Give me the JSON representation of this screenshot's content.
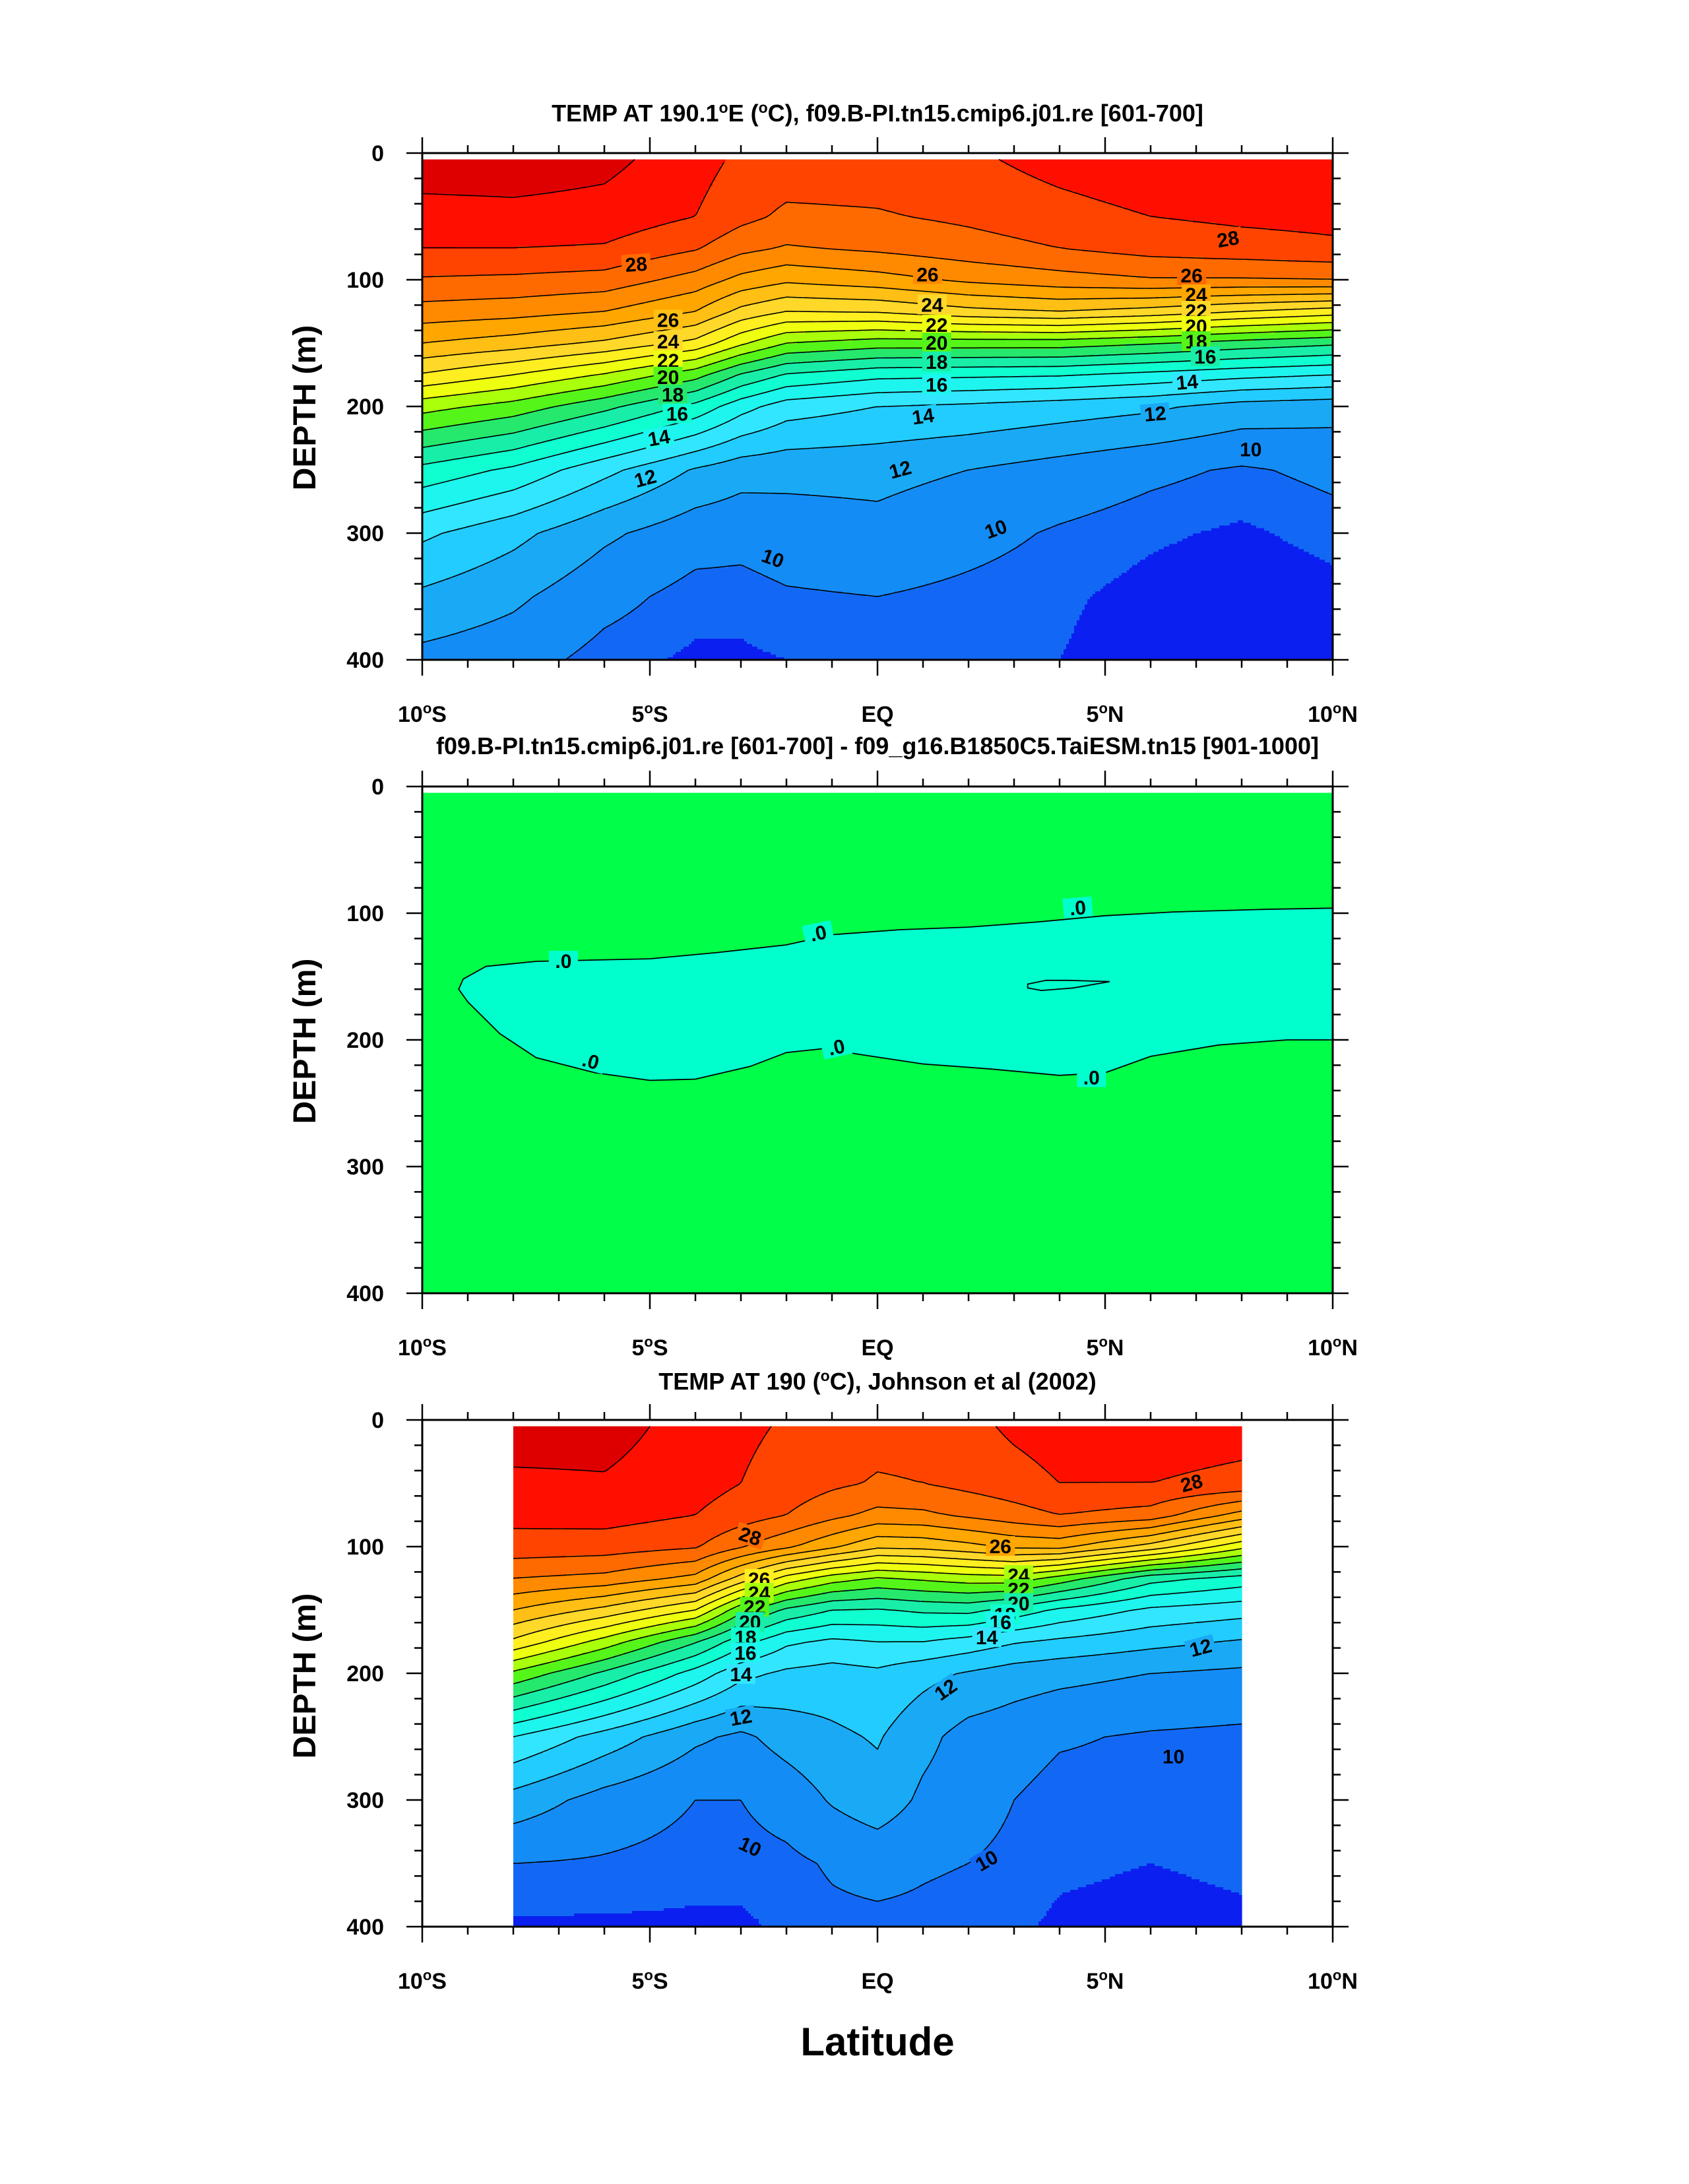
{
  "figure": {
    "xlabel": "Latitude",
    "palette": {
      "ocean_levels": [
        {
          "min": 29,
          "color": "#de0000"
        },
        {
          "min": 28,
          "color": "#ff0f00"
        },
        {
          "min": 27,
          "color": "#ff4400"
        },
        {
          "min": 26,
          "color": "#ff6a00"
        },
        {
          "min": 25,
          "color": "#ff8a00"
        },
        {
          "min": 24,
          "color": "#ffa600"
        },
        {
          "min": 23,
          "color": "#ffbf15"
        },
        {
          "min": 22,
          "color": "#ffd82a"
        },
        {
          "min": 21,
          "color": "#ffee20"
        },
        {
          "min": 20,
          "color": "#eeff10"
        },
        {
          "min": 19,
          "color": "#aaff0a"
        },
        {
          "min": 18,
          "color": "#55f51a"
        },
        {
          "min": 17,
          "color": "#25e86c"
        },
        {
          "min": 16,
          "color": "#18eea8"
        },
        {
          "min": 15,
          "color": "#10ffd0"
        },
        {
          "min": 14,
          "color": "#1df5ee"
        },
        {
          "min": 13,
          "color": "#33e6ff"
        },
        {
          "min": 12,
          "color": "#22ccff"
        },
        {
          "min": 11,
          "color": "#1aaaf5"
        },
        {
          "min": 10,
          "color": "#148cf5"
        },
        {
          "min": 9.5,
          "color": "#1268f5"
        },
        {
          "min": -1000,
          "color": "#0a1ff0"
        }
      ],
      "diff_background": "#00ff48",
      "diff_negative": "#00ffcc"
    }
  },
  "chart_data": [
    {
      "type": "contour",
      "title": "TEMP AT 190.1°E (°C), f09.B-PI.tn15.cmip6.j01.re [601-700]",
      "title_parts": {
        "a": "TEMP AT 190.1",
        "sup1": "o",
        "b": "E (",
        "sup2": "o",
        "c": "C), f09.B-PI.tn15.cmip6.j01.re [601-700]"
      },
      "ylabel": "DEPTH (m)",
      "xlim": [
        -10,
        10
      ],
      "ylim": [
        400,
        0
      ],
      "data_xlim": [
        -10,
        10
      ],
      "contour_interval": 1,
      "x": [
        -10,
        -8,
        -6,
        -4,
        -3,
        -2,
        0,
        2,
        4,
        6,
        8,
        10
      ],
      "depth": [
        5,
        50,
        75,
        100,
        125,
        150,
        175,
        200,
        250,
        300,
        350,
        400
      ],
      "values": [
        [
          29.6,
          29.6,
          29.3,
          28.4,
          27.8,
          27.6,
          27.6,
          27.8,
          28.4,
          28.8,
          28.9,
          28.9
        ],
        [
          28.6,
          28.7,
          28.6,
          28.0,
          27.3,
          26.8,
          26.9,
          27.2,
          27.6,
          28.0,
          28.2,
          28.3
        ],
        [
          28.0,
          28.0,
          27.9,
          27.1,
          26.3,
          25.9,
          26.2,
          26.6,
          27.0,
          27.4,
          27.6,
          27.8
        ],
        [
          26.9,
          26.8,
          26.6,
          25.6,
          24.7,
          24.2,
          24.6,
          25.2,
          25.6,
          25.9,
          25.9,
          26.0
        ],
        [
          25.6,
          25.4,
          25.0,
          24.0,
          22.7,
          22.0,
          22.1,
          22.7,
          23.0,
          22.6,
          22.0,
          21.5
        ],
        [
          24.0,
          23.5,
          22.8,
          21.7,
          20.2,
          19.0,
          18.5,
          18.5,
          18.5,
          18.1,
          17.6,
          17.2
        ],
        [
          21.9,
          21.0,
          19.9,
          18.4,
          16.9,
          15.9,
          15.3,
          15.2,
          15.1,
          14.7,
          14.3,
          14.0
        ],
        [
          19.4,
          18.6,
          17.3,
          15.7,
          14.4,
          13.5,
          13.0,
          12.8,
          12.5,
          12.2,
          11.6,
          11.4
        ],
        [
          15.7,
          14.8,
          13.3,
          11.9,
          11.4,
          11.3,
          11.3,
          11.0,
          10.6,
          10.2,
          9.9,
          10.2
        ],
        [
          13.2,
          12.3,
          11.2,
          10.4,
          10.3,
          10.5,
          10.7,
          10.3,
          9.9,
          9.6,
          9.4,
          9.7
        ],
        [
          11.8,
          11.2,
          10.3,
          9.7,
          9.7,
          9.9,
          10.0,
          9.8,
          9.6,
          9.3,
          9.1,
          9.3
        ],
        [
          10.7,
          10.4,
          9.7,
          9.4,
          9.4,
          9.5,
          9.6,
          9.6,
          9.5,
          9.2,
          9.0,
          9.1
        ]
      ],
      "contour_labels": [
        {
          "text": "28",
          "x": -5.3,
          "depth": 88,
          "angle": -4
        },
        {
          "text": "26",
          "x": 1.1,
          "depth": 96,
          "angle": 0
        },
        {
          "text": "28",
          "x": 7.7,
          "depth": 68,
          "angle": -10
        },
        {
          "text": "26",
          "x": -4.6,
          "depth": 132,
          "angle": 0
        },
        {
          "text": "24",
          "x": -4.6,
          "depth": 149,
          "angle": 0
        },
        {
          "text": "22",
          "x": -4.6,
          "depth": 164,
          "angle": 0
        },
        {
          "text": "20",
          "x": -4.6,
          "depth": 177,
          "angle": 0
        },
        {
          "text": "18",
          "x": -4.5,
          "depth": 191,
          "angle": 0
        },
        {
          "text": "16",
          "x": -4.4,
          "depth": 206,
          "angle": 0
        },
        {
          "text": "14",
          "x": -4.8,
          "depth": 225,
          "angle": -10
        },
        {
          "text": "12",
          "x": -5.1,
          "depth": 257,
          "angle": -15
        },
        {
          "text": "24",
          "x": 1.2,
          "depth": 120,
          "angle": 0
        },
        {
          "text": "22",
          "x": 1.3,
          "depth": 136,
          "angle": 0
        },
        {
          "text": "20",
          "x": 1.3,
          "depth": 150,
          "angle": 0
        },
        {
          "text": "18",
          "x": 1.3,
          "depth": 165,
          "angle": 0
        },
        {
          "text": "16",
          "x": 1.3,
          "depth": 183,
          "angle": 0
        },
        {
          "text": "14",
          "x": 1.0,
          "depth": 208,
          "angle": -8
        },
        {
          "text": "12",
          "x": 0.5,
          "depth": 250,
          "angle": -15
        },
        {
          "text": "10",
          "x": -2.3,
          "depth": 320,
          "angle": 20
        },
        {
          "text": "10",
          "x": 2.6,
          "depth": 297,
          "angle": -20
        },
        {
          "text": "26",
          "x": 6.9,
          "depth": 97,
          "angle": 0
        },
        {
          "text": "24",
          "x": 7.0,
          "depth": 112,
          "angle": 0
        },
        {
          "text": "22",
          "x": 7.0,
          "depth": 125,
          "angle": 0
        },
        {
          "text": "20",
          "x": 7.0,
          "depth": 137,
          "angle": 0
        },
        {
          "text": "18",
          "x": 7.0,
          "depth": 149,
          "angle": 0
        },
        {
          "text": "16",
          "x": 7.2,
          "depth": 161,
          "angle": 0
        },
        {
          "text": "14",
          "x": 6.8,
          "depth": 181,
          "angle": -5
        },
        {
          "text": "12",
          "x": 6.1,
          "depth": 206,
          "angle": -5
        },
        {
          "text": "10",
          "x": 8.2,
          "depth": 234,
          "angle": 0
        }
      ]
    },
    {
      "type": "contour",
      "title": "f09.B-PI.tn15.cmip6.j01.re [601-700] - f09_g16.B1850C5.TaiESM.tn15 [901-1000]",
      "ylabel": "DEPTH (m)",
      "xlim": [
        -10,
        10
      ],
      "ylim": [
        400,
        0
      ],
      "zero_contour_outer": [
        [
          -9.1,
          152
        ],
        [
          -8.6,
          142
        ],
        [
          -7.5,
          138
        ],
        [
          -5.0,
          136
        ],
        [
          -3.5,
          131
        ],
        [
          -2.0,
          125
        ],
        [
          -1.0,
          117
        ],
        [
          0.5,
          113
        ],
        [
          2.0,
          111
        ],
        [
          3.5,
          107
        ],
        [
          5.0,
          102
        ],
        [
          6.5,
          99
        ],
        [
          8.5,
          97
        ],
        [
          10.0,
          96
        ],
        [
          10.0,
          200
        ],
        [
          9.0,
          200
        ],
        [
          7.5,
          204
        ],
        [
          6.0,
          213
        ],
        [
          5.0,
          226
        ],
        [
          4.0,
          228
        ],
        [
          2.5,
          223
        ],
        [
          1.0,
          219
        ],
        [
          -0.3,
          212
        ],
        [
          -1.2,
          207
        ],
        [
          -2.0,
          210
        ],
        [
          -2.8,
          221
        ],
        [
          -4.0,
          231
        ],
        [
          -5.0,
          232
        ],
        [
          -6.2,
          226
        ],
        [
          -7.5,
          214
        ],
        [
          -8.3,
          195
        ],
        [
          -9.0,
          170
        ],
        [
          -9.2,
          160
        ]
      ],
      "zero_contour_inner": [
        [
          3.3,
          156
        ],
        [
          3.7,
          153
        ],
        [
          4.2,
          153
        ],
        [
          5.1,
          154
        ],
        [
          4.3,
          159
        ],
        [
          3.6,
          161
        ],
        [
          3.3,
          159
        ]
      ],
      "contour_labels": [
        {
          "text": ".0",
          "x": -6.9,
          "depth": 138,
          "angle": 0
        },
        {
          "text": ".0",
          "x": -1.3,
          "depth": 116,
          "angle": -12
        },
        {
          "text": ".0",
          "x": 4.4,
          "depth": 96,
          "angle": -5
        },
        {
          "text": ".0",
          "x": -6.3,
          "depth": 217,
          "angle": 15
        },
        {
          "text": ".0",
          "x": -0.9,
          "depth": 206,
          "angle": -12
        },
        {
          "text": ".0",
          "x": 4.7,
          "depth": 230,
          "angle": 0
        }
      ]
    },
    {
      "type": "contour",
      "title": "TEMP AT 190 (°C), Johnson et al (2002)",
      "title_parts": {
        "a": "TEMP AT 190 (",
        "sup1": "o",
        "b": "C), Johnson et al (2002)"
      },
      "ylabel": "DEPTH (m)",
      "xlim": [
        -10,
        10
      ],
      "ylim": [
        400,
        0
      ],
      "data_xlim": [
        -8,
        8
      ],
      "contour_interval": 1,
      "x": [
        -8,
        -6,
        -4,
        -3,
        -2,
        -1,
        0,
        1,
        2,
        3,
        4,
        6,
        8
      ],
      "depth": [
        5,
        50,
        75,
        100,
        125,
        150,
        175,
        200,
        250,
        300,
        350,
        400
      ],
      "values": [
        [
          29.5,
          29.4,
          28.6,
          28.2,
          27.9,
          27.6,
          27.4,
          27.4,
          27.7,
          28.2,
          28.5,
          28.4,
          28.3
        ],
        [
          28.8,
          28.9,
          28.4,
          28.0,
          27.6,
          27.2,
          26.9,
          27.0,
          27.3,
          27.6,
          28.0,
          28.0,
          27.8
        ],
        [
          28.3,
          28.4,
          28.0,
          27.5,
          27.0,
          26.3,
          25.7,
          25.8,
          26.2,
          26.6,
          27.0,
          26.6,
          24.6
        ],
        [
          27.6,
          27.5,
          27.1,
          26.1,
          25.2,
          24.2,
          23.2,
          23.3,
          23.7,
          24.2,
          24.3,
          22.6,
          20.3
        ],
        [
          26.0,
          25.7,
          24.7,
          22.6,
          20.6,
          19.5,
          18.9,
          19.2,
          19.5,
          19.6,
          18.6,
          16.4,
          15.6
        ],
        [
          24.0,
          22.7,
          21.0,
          18.3,
          16.8,
          16.0,
          15.9,
          16.2,
          16.3,
          15.6,
          14.8,
          13.8,
          13.4
        ],
        [
          21.8,
          19.6,
          17.1,
          15.4,
          14.2,
          13.8,
          14.0,
          14.0,
          13.6,
          13.1,
          12.8,
          12.3,
          11.9
        ],
        [
          18.8,
          16.8,
          14.6,
          13.3,
          12.8,
          12.6,
          12.8,
          12.3,
          11.9,
          11.5,
          11.3,
          11.0,
          10.8
        ],
        [
          14.0,
          12.6,
          11.2,
          10.8,
          11.4,
          11.8,
          12.1,
          11.3,
          10.6,
          10.4,
          10.1,
          9.9,
          9.8
        ],
        [
          11.6,
          10.6,
          10.0,
          10.0,
          10.4,
          11.1,
          11.6,
          10.8,
          10.4,
          10.0,
          9.7,
          9.7,
          9.7
        ],
        [
          10.0,
          9.9,
          9.7,
          9.7,
          9.8,
          10.1,
          10.3,
          10.1,
          10.0,
          9.8,
          9.6,
          9.5,
          9.6
        ],
        [
          9.4,
          9.4,
          9.4,
          9.4,
          9.6,
          9.8,
          9.8,
          9.8,
          9.7,
          9.6,
          9.4,
          9.3,
          9.4
        ]
      ],
      "contour_labels": [
        {
          "text": "28",
          "x": -2.8,
          "depth": 92,
          "angle": 18
        },
        {
          "text": "26",
          "x": 2.7,
          "depth": 100,
          "angle": 0
        },
        {
          "text": "28",
          "x": 6.9,
          "depth": 50,
          "angle": -15
        },
        {
          "text": "26",
          "x": -2.6,
          "depth": 126,
          "angle": 0
        },
        {
          "text": "24",
          "x": -2.6,
          "depth": 137,
          "angle": 0
        },
        {
          "text": "22",
          "x": -2.7,
          "depth": 148,
          "angle": 0
        },
        {
          "text": "20",
          "x": -2.8,
          "depth": 160,
          "angle": 0
        },
        {
          "text": "18",
          "x": -2.9,
          "depth": 172,
          "angle": 0
        },
        {
          "text": "16",
          "x": -2.9,
          "depth": 184,
          "angle": 0
        },
        {
          "text": "14",
          "x": -3.0,
          "depth": 201,
          "angle": 0
        },
        {
          "text": "12",
          "x": -3.0,
          "depth": 235,
          "angle": -10
        },
        {
          "text": "24",
          "x": 3.1,
          "depth": 123,
          "angle": 0
        },
        {
          "text": "22",
          "x": 3.1,
          "depth": 134,
          "angle": 0
        },
        {
          "text": "20",
          "x": 3.1,
          "depth": 145,
          "angle": 0
        },
        {
          "text": "18",
          "x": 2.8,
          "depth": 154,
          "angle": 0
        },
        {
          "text": "16",
          "x": 2.7,
          "depth": 160,
          "angle": 0
        },
        {
          "text": "14",
          "x": 2.4,
          "depth": 172,
          "angle": 0
        },
        {
          "text": "12",
          "x": 1.5,
          "depth": 213,
          "angle": -35
        },
        {
          "text": "12",
          "x": 7.1,
          "depth": 180,
          "angle": -15
        },
        {
          "text": "10",
          "x": -2.8,
          "depth": 337,
          "angle": 25
        },
        {
          "text": "10",
          "x": 2.4,
          "depth": 348,
          "angle": -30
        },
        {
          "text": "10",
          "x": 6.5,
          "depth": 266,
          "angle": 0
        }
      ]
    }
  ],
  "axes": {
    "y_ticks": [
      "0",
      "100",
      "200",
      "300",
      "400"
    ],
    "x_ticks": [
      {
        "main": "10",
        "deg": "o",
        "hemi": "S"
      },
      {
        "main": "5",
        "deg": "o",
        "hemi": "S"
      },
      {
        "main": "EQ",
        "deg": "",
        "hemi": ""
      },
      {
        "main": "5",
        "deg": "o",
        "hemi": "N"
      },
      {
        "main": "10",
        "deg": "o",
        "hemi": "N"
      }
    ]
  }
}
